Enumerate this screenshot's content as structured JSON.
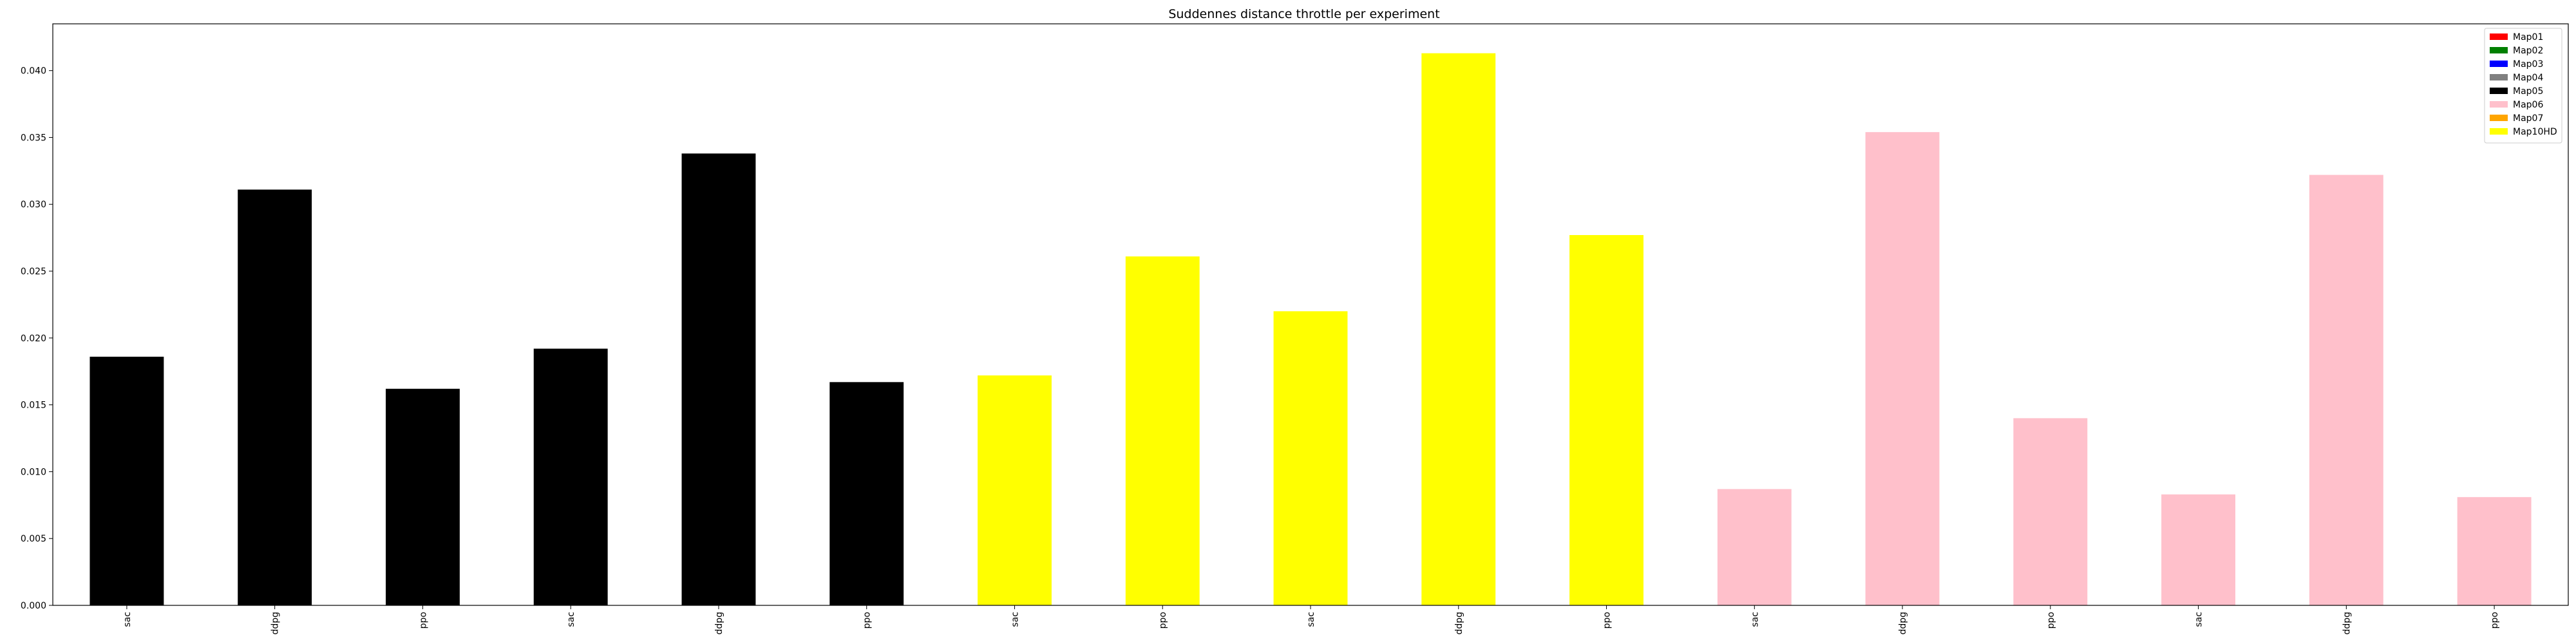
{
  "chart_data": {
    "type": "bar",
    "title": "Suddennes distance throttle per experiment",
    "xlabel": "",
    "ylabel": "",
    "ylim": [
      0,
      0.0435
    ],
    "yticks": [
      "0.000",
      "0.005",
      "0.010",
      "0.015",
      "0.020",
      "0.025",
      "0.030",
      "0.035",
      "0.040"
    ],
    "categories": [
      "sac",
      "ddpg",
      "ppo",
      "sac",
      "ddpg",
      "ppo",
      "sac",
      "ppo",
      "sac",
      "ddpg",
      "ppo",
      "sac",
      "ddpg",
      "ppo",
      "sac",
      "ddpg",
      "ppo"
    ],
    "values": [
      0.0186,
      0.0311,
      0.0162,
      0.0192,
      0.0338,
      0.0167,
      0.0172,
      0.0261,
      0.022,
      0.0413,
      0.0277,
      0.0087,
      0.0354,
      0.014,
      0.0083,
      0.0322,
      0.0081
    ],
    "bar_colors": [
      "#000000",
      "#000000",
      "#000000",
      "#000000",
      "#000000",
      "#000000",
      "#ffff00",
      "#ffff00",
      "#ffff00",
      "#ffff00",
      "#ffff00",
      "#ffc0cb",
      "#ffc0cb",
      "#ffc0cb",
      "#ffc0cb",
      "#ffc0cb",
      "#ffc0cb"
    ],
    "legend": {
      "position": "top-right",
      "entries": [
        {
          "label": "Map01",
          "color": "#ff0000"
        },
        {
          "label": "Map02",
          "color": "#008000"
        },
        {
          "label": "Map03",
          "color": "#0000ff"
        },
        {
          "label": "Map04",
          "color": "#808080"
        },
        {
          "label": "Map05",
          "color": "#000000"
        },
        {
          "label": "Map06",
          "color": "#ffc0cb"
        },
        {
          "label": "Map07",
          "color": "#ffa500"
        },
        {
          "label": "Map10HD",
          "color": "#ffff00"
        }
      ]
    },
    "grid": false
  }
}
